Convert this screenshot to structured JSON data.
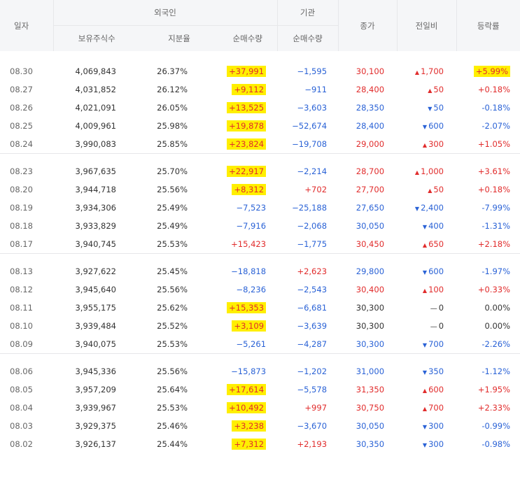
{
  "header": {
    "date": "일자",
    "foreign": "외국인",
    "institution": "기관",
    "close": "종가",
    "change": "전일비",
    "rate": "등락률",
    "holdings": "보유주식수",
    "ratio": "지분율",
    "foreign_net": "순매수량",
    "inst_net": "순매수량"
  },
  "groups": [
    {
      "rows": [
        {
          "date": "08.30",
          "holdings": "4,069,843",
          "ratio": "26.37%",
          "fnet": "+37,991",
          "fdir": "up",
          "fhl": true,
          "inet": "−1,595",
          "idir": "down",
          "close": "30,100",
          "cdir": "up",
          "chg": "1,700",
          "chgdir": "up",
          "rate": "+5.99%",
          "rdir": "up",
          "rhl": true
        },
        {
          "date": "08.27",
          "holdings": "4,031,852",
          "ratio": "26.12%",
          "fnet": "+9,112",
          "fdir": "up",
          "fhl": true,
          "inet": "−911",
          "idir": "down",
          "close": "28,400",
          "cdir": "up",
          "chg": "50",
          "chgdir": "up",
          "rate": "+0.18%",
          "rdir": "up",
          "rhl": false
        },
        {
          "date": "08.26",
          "holdings": "4,021,091",
          "ratio": "26.05%",
          "fnet": "+13,525",
          "fdir": "up",
          "fhl": true,
          "inet": "−3,603",
          "idir": "down",
          "close": "28,350",
          "cdir": "down",
          "chg": "50",
          "chgdir": "down",
          "rate": "-0.18%",
          "rdir": "down",
          "rhl": false
        },
        {
          "date": "08.25",
          "holdings": "4,009,961",
          "ratio": "25.98%",
          "fnet": "+19,878",
          "fdir": "up",
          "fhl": true,
          "inet": "−52,674",
          "idir": "down",
          "close": "28,400",
          "cdir": "down",
          "chg": "600",
          "chgdir": "down",
          "rate": "-2.07%",
          "rdir": "down",
          "rhl": false
        },
        {
          "date": "08.24",
          "holdings": "3,990,083",
          "ratio": "25.85%",
          "fnet": "+23,824",
          "fdir": "up",
          "fhl": true,
          "inet": "−19,708",
          "idir": "down",
          "close": "29,000",
          "cdir": "up",
          "chg": "300",
          "chgdir": "up",
          "rate": "+1.05%",
          "rdir": "up",
          "rhl": false
        }
      ]
    },
    {
      "rows": [
        {
          "date": "08.23",
          "holdings": "3,967,635",
          "ratio": "25.70%",
          "fnet": "+22,917",
          "fdir": "up",
          "fhl": true,
          "inet": "−2,214",
          "idir": "down",
          "close": "28,700",
          "cdir": "up",
          "chg": "1,000",
          "chgdir": "up",
          "rate": "+3.61%",
          "rdir": "up",
          "rhl": false
        },
        {
          "date": "08.20",
          "holdings": "3,944,718",
          "ratio": "25.56%",
          "fnet": "+8,312",
          "fdir": "up",
          "fhl": true,
          "inet": "+702",
          "idir": "up",
          "close": "27,700",
          "cdir": "up",
          "chg": "50",
          "chgdir": "up",
          "rate": "+0.18%",
          "rdir": "up",
          "rhl": false
        },
        {
          "date": "08.19",
          "holdings": "3,934,306",
          "ratio": "25.49%",
          "fnet": "−7,523",
          "fdir": "down",
          "fhl": false,
          "inet": "−25,188",
          "idir": "down",
          "close": "27,650",
          "cdir": "down",
          "chg": "2,400",
          "chgdir": "down",
          "rate": "-7.99%",
          "rdir": "down",
          "rhl": false
        },
        {
          "date": "08.18",
          "holdings": "3,933,829",
          "ratio": "25.49%",
          "fnet": "−7,916",
          "fdir": "down",
          "fhl": false,
          "inet": "−2,068",
          "idir": "down",
          "close": "30,050",
          "cdir": "down",
          "chg": "400",
          "chgdir": "down",
          "rate": "-1.31%",
          "rdir": "down",
          "rhl": false
        },
        {
          "date": "08.17",
          "holdings": "3,940,745",
          "ratio": "25.53%",
          "fnet": "+15,423",
          "fdir": "up",
          "fhl": false,
          "inet": "−1,775",
          "idir": "down",
          "close": "30,450",
          "cdir": "up",
          "chg": "650",
          "chgdir": "up",
          "rate": "+2.18%",
          "rdir": "up",
          "rhl": false
        }
      ]
    },
    {
      "rows": [
        {
          "date": "08.13",
          "holdings": "3,927,622",
          "ratio": "25.45%",
          "fnet": "−18,818",
          "fdir": "down",
          "fhl": false,
          "inet": "+2,623",
          "idir": "up",
          "close": "29,800",
          "cdir": "down",
          "chg": "600",
          "chgdir": "down",
          "rate": "-1.97%",
          "rdir": "down",
          "rhl": false
        },
        {
          "date": "08.12",
          "holdings": "3,945,640",
          "ratio": "25.56%",
          "fnet": "−8,236",
          "fdir": "down",
          "fhl": false,
          "inet": "−2,543",
          "idir": "down",
          "close": "30,400",
          "cdir": "up",
          "chg": "100",
          "chgdir": "up",
          "rate": "+0.33%",
          "rdir": "up",
          "rhl": false
        },
        {
          "date": "08.11",
          "holdings": "3,955,175",
          "ratio": "25.62%",
          "fnet": "+15,353",
          "fdir": "up",
          "fhl": true,
          "inet": "−6,681",
          "idir": "down",
          "close": "30,300",
          "cdir": "flat",
          "chg": "0",
          "chgdir": "flat",
          "rate": "0.00%",
          "rdir": "flat",
          "rhl": false
        },
        {
          "date": "08.10",
          "holdings": "3,939,484",
          "ratio": "25.52%",
          "fnet": "+3,109",
          "fdir": "up",
          "fhl": true,
          "inet": "−3,639",
          "idir": "down",
          "close": "30,300",
          "cdir": "flat",
          "chg": "0",
          "chgdir": "flat",
          "rate": "0.00%",
          "rdir": "flat",
          "rhl": false
        },
        {
          "date": "08.09",
          "holdings": "3,940,075",
          "ratio": "25.53%",
          "fnet": "−5,261",
          "fdir": "down",
          "fhl": false,
          "inet": "−4,287",
          "idir": "down",
          "close": "30,300",
          "cdir": "down",
          "chg": "700",
          "chgdir": "down",
          "rate": "-2.26%",
          "rdir": "down",
          "rhl": false
        }
      ]
    },
    {
      "rows": [
        {
          "date": "08.06",
          "holdings": "3,945,336",
          "ratio": "25.56%",
          "fnet": "−15,873",
          "fdir": "down",
          "fhl": false,
          "inet": "−1,202",
          "idir": "down",
          "close": "31,000",
          "cdir": "down",
          "chg": "350",
          "chgdir": "down",
          "rate": "-1.12%",
          "rdir": "down",
          "rhl": false
        },
        {
          "date": "08.05",
          "holdings": "3,957,209",
          "ratio": "25.64%",
          "fnet": "+17,614",
          "fdir": "up",
          "fhl": true,
          "inet": "−5,578",
          "idir": "down",
          "close": "31,350",
          "cdir": "up",
          "chg": "600",
          "chgdir": "up",
          "rate": "+1.95%",
          "rdir": "up",
          "rhl": false
        },
        {
          "date": "08.04",
          "holdings": "3,939,967",
          "ratio": "25.53%",
          "fnet": "+10,492",
          "fdir": "up",
          "fhl": true,
          "inet": "+997",
          "idir": "up",
          "close": "30,750",
          "cdir": "up",
          "chg": "700",
          "chgdir": "up",
          "rate": "+2.33%",
          "rdir": "up",
          "rhl": false
        },
        {
          "date": "08.03",
          "holdings": "3,929,375",
          "ratio": "25.46%",
          "fnet": "+3,238",
          "fdir": "up",
          "fhl": true,
          "inet": "−3,670",
          "idir": "down",
          "close": "30,050",
          "cdir": "down",
          "chg": "300",
          "chgdir": "down",
          "rate": "-0.99%",
          "rdir": "down",
          "rhl": false
        },
        {
          "date": "08.02",
          "holdings": "3,926,137",
          "ratio": "25.44%",
          "fnet": "+7,312",
          "fdir": "up",
          "fhl": true,
          "inet": "+2,193",
          "idir": "up",
          "close": "30,350",
          "cdir": "down",
          "chg": "300",
          "chgdir": "down",
          "rate": "-0.98%",
          "rdir": "down",
          "rhl": false
        }
      ]
    }
  ],
  "colors": {
    "up": "#e12c2c",
    "down": "#2a62d6",
    "highlight": "#ffef00"
  },
  "icons": {
    "up": "triangle-up-icon",
    "down": "triangle-down-icon",
    "flat": "dash-icon"
  }
}
